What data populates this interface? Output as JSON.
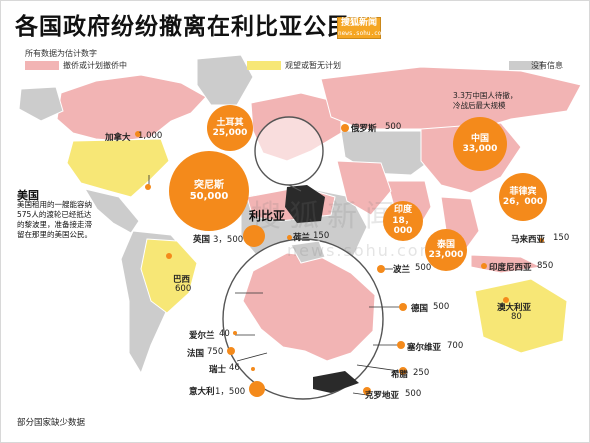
{
  "title": "各国政府纷纷撤离在利比亚公民",
  "logo": {
    "name": "搜狐新闻",
    "url": "news.sohu.com"
  },
  "subtitle": "所有数据为估计数字",
  "legend": [
    {
      "label": "撤侨或计划撤侨中",
      "color": "#f2b4b4"
    },
    {
      "label": "观望或暂无计划",
      "color": "#f7e776"
    },
    {
      "label": "没有信息",
      "color": "#cccccc"
    }
  ],
  "focus_country": "利比亚",
  "usa_note": {
    "title": "美国",
    "text": "美国租用的一艘能容纳575人的渡轮已经抵达的黎波里，准备接走滞留在那里的美国公民。"
  },
  "china_note": "3.3万中国人待撤，冷战后最大规模",
  "footer": "部分国家缺少数据",
  "watermark": {
    "main": "搜狐新闻",
    "sub": "news.sohu.com"
  },
  "countries": {
    "canada": {
      "name": "加拿大",
      "value": "1,000"
    },
    "turkey": {
      "name": "土耳其",
      "value": "25,000"
    },
    "russia": {
      "name": "俄罗斯",
      "value": "500"
    },
    "china": {
      "name": "中国",
      "value": "33,000"
    },
    "philippines": {
      "name": "菲律宾",
      "value": "26，000"
    },
    "tunisia": {
      "name": "突尼斯",
      "value": "50,000"
    },
    "india": {
      "name": "印度",
      "value": "18，000"
    },
    "thailand": {
      "name": "泰国",
      "value": "23,000"
    },
    "malaysia": {
      "name": "马来西亚",
      "value": "150"
    },
    "indonesia": {
      "name": "印度尼西亚",
      "value": "850"
    },
    "australia": {
      "name": "澳大利亚",
      "value": "80"
    },
    "uk": {
      "name": "英国",
      "value": "3，500"
    },
    "netherlands": {
      "name": "荷兰",
      "value": "150"
    },
    "brazil": {
      "name": "巴西",
      "value": "600"
    },
    "poland": {
      "name": "波兰",
      "value": "500"
    },
    "germany": {
      "name": "德国",
      "value": "500"
    },
    "ireland": {
      "name": "爱尔兰",
      "value": "40"
    },
    "france": {
      "name": "法国",
      "value": "750"
    },
    "serbia": {
      "name": "塞尔维亚",
      "value": "700"
    },
    "switzerland": {
      "name": "瑞士",
      "value": "46"
    },
    "greece": {
      "name": "希腊",
      "value": "250"
    },
    "italy": {
      "name": "意大利",
      "value": "1，500"
    },
    "croatia": {
      "name": "克罗地亚",
      "value": "500"
    }
  }
}
